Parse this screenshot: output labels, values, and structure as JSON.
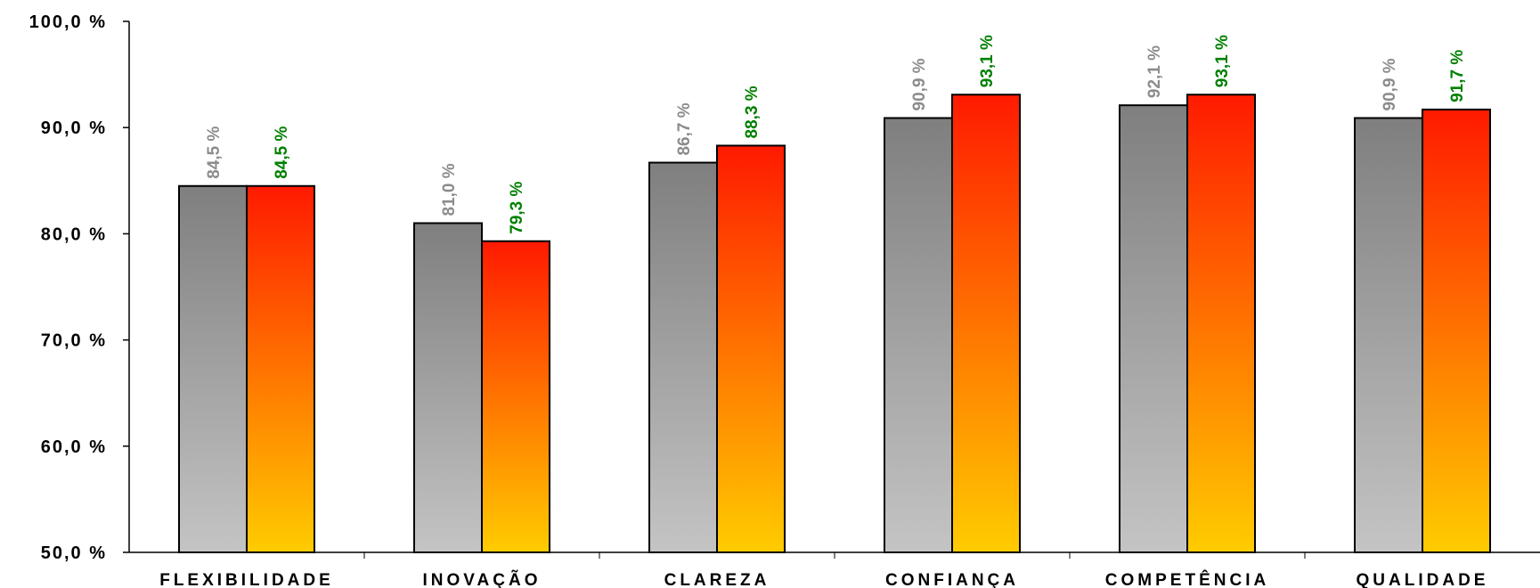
{
  "chart_data": {
    "type": "bar",
    "categories": [
      "FLEXIBILIDADE",
      "INOVAÇÃO",
      "CLAREZA",
      "CONFIANÇA",
      "COMPETÊNCIA",
      "QUALIDADE"
    ],
    "series": [
      {
        "values": [
          84.5,
          81.0,
          86.7,
          90.9,
          92.1,
          90.9
        ],
        "labels": [
          "84,5 %",
          "81,0 %",
          "86,7 %",
          "90,9 %",
          "92,1 %",
          "90,9 %"
        ],
        "label_color": "#8c8c8c",
        "gradient": [
          "#7f7f7f",
          "#c4c4c4"
        ]
      },
      {
        "values": [
          84.5,
          79.3,
          88.3,
          93.1,
          93.1,
          91.7
        ],
        "labels": [
          "84,5 %",
          "79,3 %",
          "88,3 %",
          "93,1 %",
          "93,1 %",
          "91,7 %"
        ],
        "label_color": "#008000",
        "gradient": [
          "#ff1a00",
          "#ffcc00"
        ]
      }
    ],
    "yticks": [
      "50,0 %",
      "60,0 %",
      "70,0 %",
      "80,0 %",
      "90,0 %",
      "100,0 %"
    ],
    "ytick_values": [
      50,
      60,
      70,
      80,
      90,
      100
    ],
    "ylim": [
      50,
      100
    ],
    "title": "",
    "xlabel": "",
    "ylabel": "",
    "grid": false,
    "legend": "none"
  }
}
